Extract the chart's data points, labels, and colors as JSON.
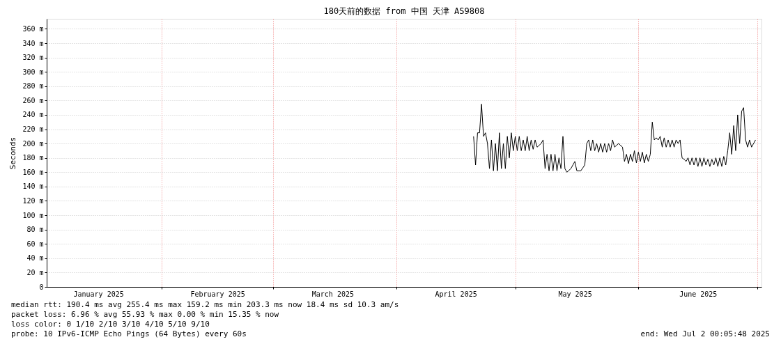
{
  "chart_data": {
    "type": "line",
    "title": "180天前的数据 from 中国 天津 AS9808",
    "ylabel": "Seconds",
    "x": [
      "2025-04-20T12:00",
      "2025-04-21T00:00",
      "2025-04-21T12:00",
      "2025-04-22T00:00",
      "2025-04-22T12:00",
      "2025-04-23T00:00",
      "2025-04-23T12:00",
      "2025-04-24T00:00",
      "2025-04-24T12:00",
      "2025-04-25T00:00",
      "2025-04-25T12:00",
      "2025-04-26T00:00",
      "2025-04-26T12:00",
      "2025-04-27T00:00",
      "2025-04-27T12:00",
      "2025-04-28T00:00",
      "2025-04-28T12:00",
      "2025-04-29T00:00",
      "2025-04-29T12:00",
      "2025-04-30T00:00",
      "2025-04-30T12:00",
      "2025-05-01T00:00",
      "2025-05-01T12:00",
      "2025-05-02T00:00",
      "2025-05-02T12:00",
      "2025-05-03T00:00",
      "2025-05-03T12:00",
      "2025-05-04T00:00",
      "2025-05-04T12:00",
      "2025-05-05T00:00",
      "2025-05-05T12:00",
      "2025-05-06T00:00",
      "2025-05-06T12:00",
      "2025-05-07T12:00",
      "2025-05-08T00:00",
      "2025-05-08T12:00",
      "2025-05-09T00:00",
      "2025-05-09T12:00",
      "2025-05-10T00:00",
      "2025-05-10T12:00",
      "2025-05-11T00:00",
      "2025-05-11T12:00",
      "2025-05-12T00:00",
      "2025-05-12T12:00",
      "2025-05-13T00:00",
      "2025-05-13T12:00",
      "2025-05-14T00:00",
      "2025-05-15T00:00",
      "2025-05-16T00:00",
      "2025-05-16T12:00",
      "2025-05-17T12:00",
      "2025-05-18T12:00",
      "2025-05-19T00:00",
      "2025-05-19T12:00",
      "2025-05-20T00:00",
      "2025-05-20T12:00",
      "2025-05-21T00:00",
      "2025-05-21T12:00",
      "2025-05-22T00:00",
      "2025-05-22T12:00",
      "2025-05-23T00:00",
      "2025-05-23T12:00",
      "2025-05-24T00:00",
      "2025-05-24T12:00",
      "2025-05-25T00:00",
      "2025-05-25T12:00",
      "2025-05-26T00:00",
      "2025-05-27T00:00",
      "2025-05-28T00:00",
      "2025-05-28T12:00",
      "2025-05-29T00:00",
      "2025-05-29T12:00",
      "2025-05-30T00:00",
      "2025-05-30T12:00",
      "2025-05-31T00:00",
      "2025-05-31T12:00",
      "2025-06-01T00:00",
      "2025-06-01T12:00",
      "2025-06-02T00:00",
      "2025-06-02T12:00",
      "2025-06-03T00:00",
      "2025-06-03T12:00",
      "2025-06-04T00:00",
      "2025-06-04T12:00",
      "2025-06-05T00:00",
      "2025-06-05T12:00",
      "2025-06-06T00:00",
      "2025-06-06T12:00",
      "2025-06-07T00:00",
      "2025-06-07T12:00",
      "2025-06-08T00:00",
      "2025-06-08T12:00",
      "2025-06-09T00:00",
      "2025-06-09T12:00",
      "2025-06-10T00:00",
      "2025-06-10T12:00",
      "2025-06-11T00:00",
      "2025-06-11T12:00",
      "2025-06-12T00:00",
      "2025-06-12T12:00",
      "2025-06-13T00:00",
      "2025-06-13T12:00",
      "2025-06-14T00:00",
      "2025-06-14T12:00",
      "2025-06-15T00:00",
      "2025-06-15T12:00",
      "2025-06-16T00:00",
      "2025-06-16T12:00",
      "2025-06-17T00:00",
      "2025-06-17T12:00",
      "2025-06-18T00:00",
      "2025-06-18T12:00",
      "2025-06-19T00:00",
      "2025-06-19T12:00",
      "2025-06-20T00:00",
      "2025-06-20T12:00",
      "2025-06-21T00:00",
      "2025-06-21T12:00",
      "2025-06-22T00:00",
      "2025-06-22T12:00",
      "2025-06-23T00:00",
      "2025-06-23T12:00",
      "2025-06-24T00:00",
      "2025-06-24T12:00",
      "2025-06-25T00:00",
      "2025-06-25T12:00",
      "2025-06-26T00:00",
      "2025-06-26T12:00",
      "2025-06-27T00:00",
      "2025-06-27T12:00",
      "2025-06-28T00:00",
      "2025-06-28T12:00",
      "2025-06-29T00:00",
      "2025-06-29T12:00",
      "2025-06-30T12:00"
    ],
    "series": [
      {
        "color": "#000000",
        "values": [
          210,
          170,
          215,
          215,
          255,
          210,
          215,
          200,
          165,
          205,
          162,
          200,
          162,
          215,
          165,
          200,
          165,
          210,
          180,
          215,
          190,
          210,
          190,
          210,
          190,
          205,
          190,
          210,
          190,
          205,
          192,
          205,
          195,
          200,
          205,
          165,
          185,
          162,
          185,
          162,
          185,
          162,
          180,
          165,
          210,
          165,
          160,
          165,
          175,
          162,
          162,
          170,
          200,
          205,
          190,
          205,
          190,
          200,
          188,
          200,
          188,
          200,
          188,
          200,
          190,
          205,
          195,
          200,
          195,
          175,
          185,
          172,
          185,
          175,
          190,
          173,
          188,
          175,
          188,
          173,
          185,
          175,
          185,
          230,
          205,
          208,
          205,
          210,
          195,
          208,
          195,
          205,
          195,
          205,
          195,
          205,
          200,
          205,
          180,
          178,
          175,
          180,
          170,
          180,
          170,
          180,
          168,
          180,
          168,
          180,
          170,
          178,
          168,
          178,
          170,
          180,
          168,
          180,
          168,
          182,
          170,
          190,
          215,
          185,
          225,
          190,
          240,
          200,
          245,
          250,
          205,
          195,
          205,
          195,
          205
        ]
      }
    ],
    "xlim": [
      "2025-01-03T00:00",
      "2025-07-02T00:00"
    ],
    "xticks": [
      {
        "value": "2025-01-16",
        "label": "January 2025"
      },
      {
        "value": "2025-02-01",
        "label": null
      },
      {
        "value": "2025-02-15",
        "label": "February 2025"
      },
      {
        "value": "2025-03-01",
        "label": null
      },
      {
        "value": "2025-03-16",
        "label": "March 2025"
      },
      {
        "value": "2025-04-01",
        "label": null
      },
      {
        "value": "2025-04-16",
        "label": "April 2025"
      },
      {
        "value": "2025-05-01",
        "label": null
      },
      {
        "value": "2025-05-16",
        "label": "May 2025"
      },
      {
        "value": "2025-06-01",
        "label": null
      },
      {
        "value": "2025-06-16",
        "label": "June 2025"
      },
      {
        "value": "2025-07-01",
        "label": null
      }
    ],
    "ylim": [
      0,
      374
    ],
    "yticks": [
      0,
      {
        "value": 20,
        "label": "20 m"
      },
      {
        "value": 40,
        "label": "40 m"
      },
      {
        "value": 60,
        "label": "60 m"
      },
      {
        "value": 80,
        "label": "80 m"
      },
      {
        "value": 100,
        "label": "100 m"
      },
      {
        "value": 120,
        "label": "120 m"
      },
      {
        "value": 140,
        "label": "140 m"
      },
      {
        "value": 160,
        "label": "160 m"
      },
      {
        "value": 180,
        "label": "180 m"
      },
      {
        "value": 200,
        "label": "200 m"
      },
      {
        "value": 220,
        "label": "220 m"
      },
      {
        "value": 240,
        "label": "240 m"
      },
      {
        "value": 260,
        "label": "260 m"
      },
      {
        "value": 280,
        "label": "280 m"
      },
      {
        "value": 300,
        "label": "300 m"
      },
      {
        "value": 320,
        "label": "320 m"
      },
      {
        "value": 340,
        "label": "340 m"
      },
      {
        "value": 360,
        "label": "360 m"
      }
    ],
    "grid": true,
    "marker": "none",
    "line_style": "solid",
    "annotations": [
      "median rtt:  190.4 ms avg  255.4 ms max  159.2 ms min  203.3 ms now  18.4 ms sd  10.3   am/s",
      "packet loss: 6.96 % avg  55.93 % max  0.00 % min  15.35 % now",
      "loss color:  0  1/10  2/10  3/10  4/10  5/10  9/10",
      "probe:       10 IPv6-ICMP Echo Pings (64 Bytes) every 60s",
      "end: Wed Jul  2 00:05:48 2025"
    ]
  }
}
